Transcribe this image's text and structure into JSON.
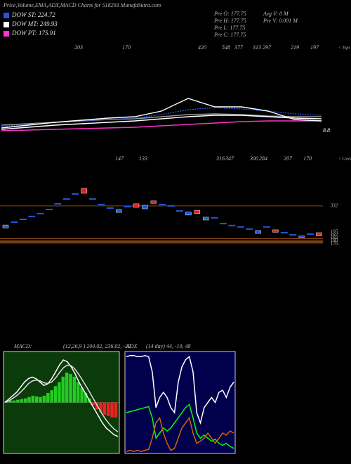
{
  "header": {
    "title": "Price,Volume,EMA,ADX,MACD Charts for 518293 MunafaSutra.com",
    "legend": [
      {
        "label": "DOW ST: 224.72",
        "color": "#2255dd"
      },
      {
        "label": "DOW MT: 249.93",
        "color": "#ffffff"
      },
      {
        "label": "DOW PT: 175.91",
        "color": "#ff33cc"
      }
    ],
    "info": [
      "Pre O: 177.75",
      "Avg V: 0 M",
      "Pre H: 177.75",
      "Pre V: 0.001 M",
      "Pre L: 177.75",
      "Pre C: 177.75"
    ]
  },
  "chart_data": [
    {
      "type": "line",
      "ylim": [
        0,
        100
      ],
      "tops": [
        "203",
        "170",
        "420",
        "548",
        "377",
        "313",
        "297",
        "219",
        "197"
      ],
      "tops_label": "< Tops",
      "end_label": "8.8",
      "series": [
        {
          "color": "#999999",
          "values": [
            12,
            14,
            16,
            18,
            20,
            21,
            24,
            27,
            28,
            27,
            25,
            24,
            24
          ]
        },
        {
          "color": "#ff33cc",
          "values": [
            4,
            5,
            6,
            7,
            8,
            9,
            11,
            13,
            15,
            17,
            18,
            18,
            18
          ]
        },
        {
          "color": "#ffffff",
          "values": [
            6,
            9,
            12,
            14,
            16,
            18,
            21,
            24,
            26,
            26,
            24,
            22,
            21
          ]
        },
        {
          "color": "#2255dd",
          "dashed": true,
          "values": [
            10,
            13,
            16,
            18,
            20,
            22,
            27,
            34,
            37,
            35,
            32,
            28,
            26
          ]
        },
        {
          "color": "#ffffff",
          "values": [
            8,
            12,
            16,
            19,
            22,
            24,
            32,
            50,
            38,
            38,
            32,
            20,
            18
          ]
        }
      ]
    },
    {
      "type": "candle",
      "ylim": [
        164,
        429
      ],
      "yticks": [
        332,
        195,
        187,
        183,
        180,
        176
      ],
      "lows": [
        "147",
        "133",
        "316",
        "347",
        "300",
        "284",
        "207",
        "170"
      ],
      "lows_label": "< Lows",
      "open": [
        240,
        264,
        276,
        288,
        300,
        317,
        341,
        361,
        382,
        385,
        361,
        338,
        323,
        305,
        329,
        326,
        320,
        343,
        338,
        332,
        311,
        294,
        300,
        273,
        282,
        258,
        250,
        244,
        235,
        217,
        244,
        222,
        220,
        211,
        200,
        214,
        206
      ],
      "values": [
        252,
        264,
        276,
        288,
        300,
        317,
        341,
        361,
        382,
        406,
        361,
        338,
        323,
        317,
        329,
        341,
        335,
        353,
        338,
        332,
        311,
        306,
        314,
        285,
        282,
        258,
        250,
        244,
        235,
        229,
        244,
        232,
        220,
        211,
        206,
        214,
        220
      ],
      "colors": [
        "#2255dd",
        "#2255dd",
        "#2255dd",
        "#2255dd",
        "#2255dd",
        "#2255dd",
        "#2255dd",
        "#2255dd",
        "#2255dd",
        "#dd2222",
        "#2255dd",
        "#2255dd",
        "#2255dd",
        "#2255dd",
        "#2255dd",
        "#dd2222",
        "#2255dd",
        "#dd2222",
        "#2255dd",
        "#2255dd",
        "#2255dd",
        "#2255dd",
        "#dd2222",
        "#2255dd",
        "#2255dd",
        "#2255dd",
        "#2255dd",
        "#2255dd",
        "#2255dd",
        "#2255dd",
        "#2255dd",
        "#dd2222",
        "#2255dd",
        "#2255dd",
        "#2255dd",
        "#2255dd",
        "#dd2222"
      ]
    },
    {
      "type": "macd",
      "title": "MACD:",
      "subtitle": "(12,26,9 ) 204.02, 236.02, -32",
      "ylim": [
        -150,
        150
      ],
      "background": "#0b3a0b",
      "histogram": [
        4,
        6,
        6,
        8,
        10,
        12,
        16,
        20,
        18,
        16,
        20,
        28,
        36,
        48,
        60,
        76,
        88,
        84,
        76,
        60,
        44,
        28,
        12,
        -8,
        -20,
        -28,
        -36,
        -40,
        -44,
        -44
      ],
      "positive_color": "#22cc22",
      "negative_color": "#ee2222",
      "series": [
        {
          "color": "#ffffff",
          "values": [
            0,
            10,
            20,
            30,
            45,
            60,
            70,
            75,
            70,
            60,
            50,
            55,
            70,
            90,
            110,
            125,
            120,
            105,
            85,
            60,
            40,
            20,
            0,
            -20,
            -40,
            -60,
            -75,
            -85,
            -95,
            -100
          ]
        },
        {
          "color": "#dddddd",
          "values": [
            0,
            5,
            12,
            20,
            30,
            42,
            55,
            63,
            66,
            64,
            58,
            56,
            60,
            72,
            88,
            102,
            110,
            108,
            98,
            82,
            64,
            45,
            25,
            5,
            -15,
            -35,
            -52,
            -66,
            -78,
            -86
          ]
        }
      ]
    },
    {
      "type": "line",
      "title": "ADX",
      "subtitle": "(14 day) 44, -19, 48",
      "ylim": [
        0,
        100
      ],
      "background": "#00004d",
      "series": [
        {
          "color": "#ffffff",
          "values": [
            95,
            96,
            96,
            95,
            95,
            96,
            95,
            80,
            45,
            55,
            60,
            55,
            45,
            40,
            70,
            85,
            92,
            95,
            80,
            40,
            30,
            45,
            50,
            55,
            50,
            60,
            62,
            55,
            65,
            70
          ]
        },
        {
          "color": "#00ff00",
          "values": [
            40,
            41,
            42,
            43,
            44,
            45,
            46,
            35,
            15,
            20,
            25,
            22,
            25,
            30,
            35,
            40,
            45,
            48,
            35,
            20,
            15,
            18,
            15,
            12,
            14,
            10,
            8,
            10,
            7,
            5
          ]
        },
        {
          "color": "#cc6600",
          "values": [
            2,
            3,
            2,
            3,
            2,
            3,
            4,
            15,
            30,
            35,
            20,
            10,
            3,
            5,
            15,
            25,
            30,
            35,
            20,
            10,
            12,
            15,
            20,
            15,
            10,
            15,
            20,
            18,
            22,
            20
          ]
        }
      ]
    }
  ]
}
